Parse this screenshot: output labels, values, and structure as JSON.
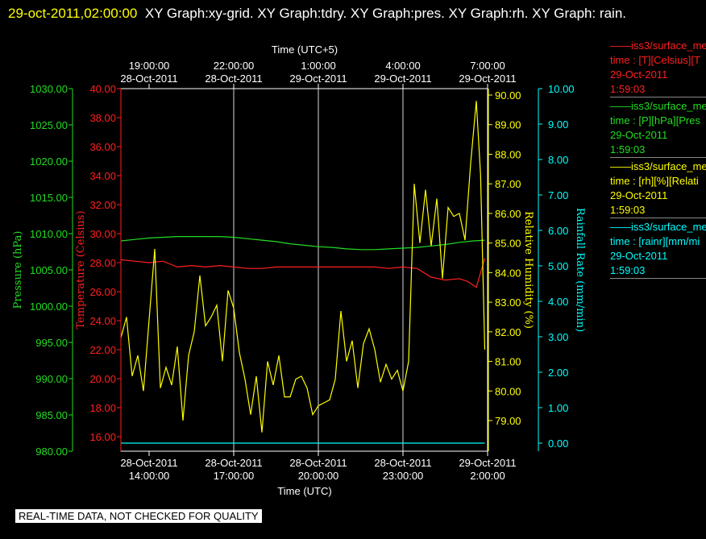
{
  "header": {
    "timestamp": "29-oct-2011,02:00:00",
    "title": "XY Graph:xy-grid.  XY Graph:tdry.  XY Graph:pres.  XY Graph:rh.  XY Graph: rain."
  },
  "footer": {
    "badge": "REAL-TIME DATA, NOT CHECKED FOR QUALITY"
  },
  "legend": [
    {
      "name": "iss3/surface_me",
      "detail": "time : [T][Celsius][T",
      "date": "29-Oct-2011",
      "time": "1:59:03",
      "color": "#ff2020"
    },
    {
      "name": "iss3/surface_me",
      "detail": "time : [P][hPa][Pres",
      "date": "29-Oct-2011",
      "time": "1:59:03",
      "color": "#22dd22"
    },
    {
      "name": "iss3/surface_me",
      "detail": "time : [rh][%][Relati",
      "date": "29-Oct-2011",
      "time": "1:59:03",
      "color": "#ffff00"
    },
    {
      "name": "iss3/surface_me",
      "detail": "time : [rainr][mm/mi",
      "date": "29-Oct-2011",
      "time": "1:59:03",
      "color": "#00ffff"
    }
  ],
  "chart_data": {
    "type": "line",
    "top_axis_title": "Time (UTC+5)",
    "bottom_axis_title": "Time (UTC)",
    "x_range_utc": [
      "28-Oct-2011 13:00",
      "29-Oct-2011 02:00"
    ],
    "top_ticks": [
      {
        "time": "19:00:00",
        "date": "28-Oct-2011"
      },
      {
        "time": "22:00:00",
        "date": "28-Oct-2011"
      },
      {
        "time": "1:00:00",
        "date": "29-Oct-2011"
      },
      {
        "time": "4:00:00",
        "date": "29-Oct-2011"
      },
      {
        "time": "7:00:00",
        "date": "29-Oct-2011"
      }
    ],
    "bottom_ticks": [
      {
        "date": "28-Oct-2011",
        "time": "14:00:00"
      },
      {
        "date": "28-Oct-2011",
        "time": "17:00:00"
      },
      {
        "date": "28-Oct-2011",
        "time": "20:00:00"
      },
      {
        "date": "28-Oct-2011",
        "time": "23:00:00"
      },
      {
        "date": "29-Oct-2011",
        "time": "2:00:00"
      }
    ],
    "grid": true,
    "axes": {
      "pressure": {
        "label": "Pressure (hPa)",
        "range": [
          980,
          1030
        ],
        "ticks": [
          "980.00",
          "985.00",
          "990.00",
          "995.00",
          "1000.00",
          "1005.00",
          "1010.00",
          "1015.00",
          "1020.00",
          "1025.00",
          "1030.00"
        ],
        "color": "#22dd22"
      },
      "temperature": {
        "label": "Temperature (Celsius)",
        "range": [
          15,
          40
        ],
        "ticks": [
          "16.00",
          "18.00",
          "20.00",
          "22.00",
          "24.00",
          "26.00",
          "28.00",
          "30.00",
          "32.00",
          "34.00",
          "36.00",
          "38.00",
          "40.00"
        ],
        "color": "#ff2020"
      },
      "humidity": {
        "label": "Relative Humidity (%)",
        "range": [
          78.1,
          90.2
        ],
        "ticks": [
          "79.00",
          "80.00",
          "81.00",
          "82.00",
          "83.00",
          "84.00",
          "85.00",
          "86.00",
          "87.00",
          "88.00",
          "89.00",
          "90.00"
        ],
        "color": "#ffff00"
      },
      "rain": {
        "label": "Rainfall Rate (mm/min)",
        "range": [
          0,
          10
        ],
        "ticks": [
          "0.00",
          "1.00",
          "2.00",
          "3.00",
          "4.00",
          "5.00",
          "6.00",
          "7.00",
          "8.00",
          "9.00",
          "10.00"
        ],
        "color": "#00ffff"
      }
    },
    "series": [
      {
        "name": "Temperature",
        "axis": "temperature",
        "color": "#ff2020",
        "x": [
          13.0,
          13.5,
          14.0,
          14.5,
          15.0,
          15.5,
          16.0,
          16.5,
          17.0,
          17.5,
          18.0,
          18.5,
          19.0,
          19.5,
          20.0,
          20.5,
          21.0,
          21.5,
          22.0,
          22.5,
          23.0,
          23.5,
          24.0,
          24.5,
          25.0,
          25.3,
          25.6,
          25.9
        ],
        "y": [
          28.2,
          28.1,
          28.0,
          28.1,
          27.7,
          27.8,
          27.7,
          27.8,
          27.7,
          27.6,
          27.6,
          27.7,
          27.7,
          27.7,
          27.7,
          27.7,
          27.7,
          27.7,
          27.7,
          27.6,
          27.7,
          27.6,
          27.0,
          26.8,
          26.9,
          26.7,
          26.3,
          28.3
        ]
      },
      {
        "name": "Pressure",
        "axis": "pressure",
        "color": "#22dd22",
        "x": [
          13.0,
          13.5,
          14.0,
          14.5,
          15.0,
          15.5,
          16.0,
          16.5,
          17.0,
          17.5,
          18.0,
          18.5,
          19.0,
          19.5,
          20.0,
          20.5,
          21.0,
          21.5,
          22.0,
          22.5,
          23.0,
          23.5,
          24.0,
          24.5,
          25.0,
          25.5,
          25.9
        ],
        "y": [
          1009.0,
          1009.2,
          1009.4,
          1009.5,
          1009.6,
          1009.6,
          1009.6,
          1009.6,
          1009.5,
          1009.3,
          1009.1,
          1008.9,
          1008.6,
          1008.4,
          1008.2,
          1008.1,
          1007.9,
          1007.8,
          1007.8,
          1007.9,
          1008.0,
          1008.1,
          1008.3,
          1008.5,
          1008.8,
          1009.0,
          1009.1
        ]
      },
      {
        "name": "Relative Humidity",
        "axis": "humidity",
        "color": "#ffff00",
        "x": [
          13.0,
          13.2,
          13.4,
          13.6,
          13.8,
          14.0,
          14.2,
          14.4,
          14.6,
          14.8,
          15.0,
          15.2,
          15.4,
          15.6,
          15.8,
          16.0,
          16.2,
          16.4,
          16.6,
          16.8,
          17.0,
          17.2,
          17.4,
          17.6,
          17.8,
          18.0,
          18.2,
          18.4,
          18.6,
          18.8,
          19.0,
          19.2,
          19.4,
          19.6,
          19.8,
          20.0,
          20.2,
          20.4,
          20.6,
          20.8,
          21.0,
          21.2,
          21.4,
          21.6,
          21.8,
          22.0,
          22.2,
          22.4,
          22.6,
          22.8,
          23.0,
          23.2,
          23.4,
          23.6,
          23.8,
          24.0,
          24.2,
          24.4,
          24.6,
          24.8,
          25.0,
          25.2,
          25.4,
          25.6,
          25.75,
          25.9
        ],
        "y": [
          81.8,
          82.5,
          80.5,
          81.2,
          80.0,
          82.4,
          84.8,
          80.1,
          80.8,
          80.2,
          81.5,
          79.0,
          81.2,
          82.0,
          83.9,
          82.2,
          82.5,
          82.9,
          81.0,
          83.4,
          82.8,
          81.3,
          80.4,
          79.2,
          80.5,
          78.6,
          81.0,
          80.2,
          81.2,
          79.8,
          79.8,
          80.4,
          80.5,
          80.1,
          79.2,
          79.5,
          79.6,
          79.7,
          80.4,
          82.7,
          81.0,
          81.7,
          80.1,
          81.6,
          82.1,
          81.4,
          80.3,
          80.9,
          80.4,
          80.7,
          80.0,
          81.0,
          87.0,
          85.0,
          86.8,
          84.9,
          86.5,
          83.8,
          86.2,
          85.9,
          86.0,
          85.1,
          87.7,
          89.8,
          87.3,
          81.4
        ]
      },
      {
        "name": "Rainfall Rate",
        "axis": "rain",
        "color": "#00ffff",
        "x": [
          13.0,
          25.9
        ],
        "y": [
          0.0,
          0.0
        ]
      }
    ]
  }
}
